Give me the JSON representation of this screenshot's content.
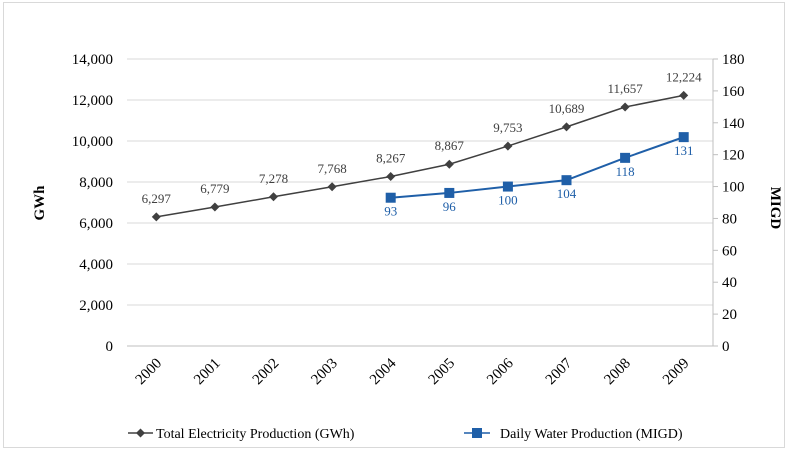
{
  "chart_data": {
    "type": "line",
    "categories": [
      "2000",
      "2001",
      "2002",
      "2003",
      "2004",
      "2005",
      "2006",
      "2007",
      "2008",
      "2009"
    ],
    "ylabel": "GWh",
    "y2label": "MIGD",
    "ylim": [
      0,
      14000
    ],
    "y2lim": [
      0,
      180
    ],
    "yticks": [
      "0",
      "2,000",
      "4,000",
      "6,000",
      "8,000",
      "10,000",
      "12,000",
      "14,000"
    ],
    "y2ticks": [
      "0",
      "20",
      "40",
      "60",
      "80",
      "100",
      "120",
      "140",
      "160",
      "180"
    ],
    "legend_position": "bottom",
    "series": [
      {
        "name": "Total Electricity Production (GWh)",
        "axis": "left",
        "color": "#404040",
        "marker": "diamond",
        "values": [
          6297,
          6779,
          7278,
          7768,
          8267,
          8867,
          9753,
          10689,
          11657,
          12224
        ],
        "labels": [
          "6,297",
          "6,779",
          "7,278",
          "7,768",
          "8,267",
          "8,867",
          "9,753",
          "10,689",
          "11,657",
          "12,224"
        ]
      },
      {
        "name": "Daily Water Production (MIGD)",
        "axis": "right",
        "color": "#1f5fa8",
        "marker": "square",
        "values": [
          null,
          null,
          null,
          null,
          93,
          96,
          100,
          104,
          118,
          131
        ],
        "labels": [
          "",
          "",
          "",
          "",
          "93",
          "96",
          "100",
          "104",
          "118",
          "131"
        ]
      }
    ]
  }
}
